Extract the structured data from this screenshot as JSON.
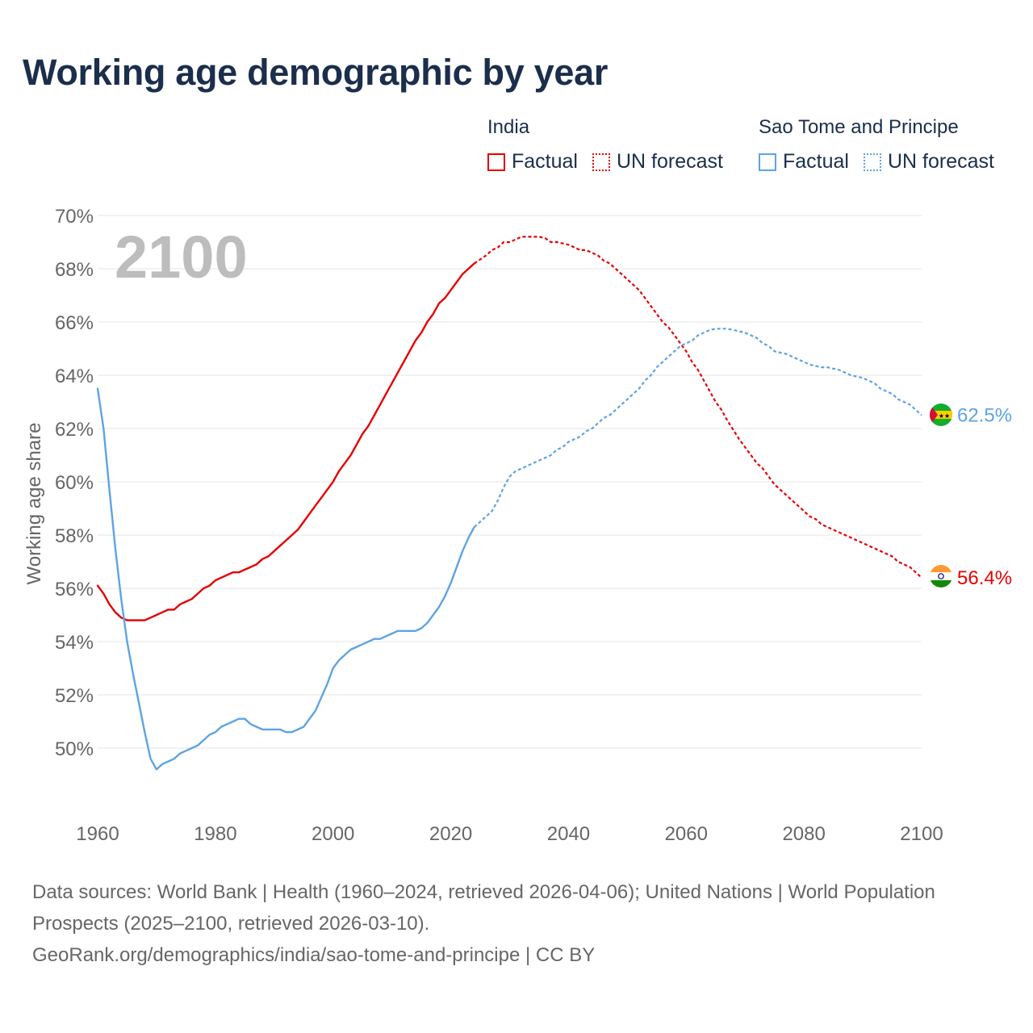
{
  "title": "Working age demographic by year",
  "legend": {
    "groups": [
      {
        "name": "India",
        "color": "#e60000",
        "factual_label": "Factual",
        "forecast_label": "UN forecast"
      },
      {
        "name": "Sao Tome and Principe",
        "color": "#5ea3e3",
        "factual_label": "Factual",
        "forecast_label": "UN forecast"
      }
    ]
  },
  "footer": {
    "sources": "Data sources: World Bank | Health (1960–2024, retrieved 2026-04-06); United Nations | World Population Prospects (2025–2100, retrieved 2026-03-10).",
    "url": "GeoRank.org/demographics/india/sao-tome-and-principe | CC BY"
  },
  "chart_data": {
    "type": "line",
    "title": "Working age demographic by year",
    "xlabel": "",
    "ylabel": "Working age share",
    "xlim": [
      1960,
      2100
    ],
    "ylim": [
      48,
      70
    ],
    "y_ticks": [
      50,
      52,
      54,
      56,
      58,
      60,
      62,
      64,
      66,
      68,
      70
    ],
    "y_tick_labels": [
      "50%",
      "52%",
      "54%",
      "56%",
      "58%",
      "60%",
      "62%",
      "64%",
      "66%",
      "68%",
      "70%"
    ],
    "x_ticks": [
      1960,
      1980,
      2000,
      2020,
      2040,
      2060,
      2080,
      2100
    ],
    "x_tick_labels": [
      "1960",
      "1980",
      "2000",
      "2020",
      "2040",
      "2060",
      "2080",
      "2100"
    ],
    "year_watermark": "2100",
    "grid": true,
    "series": [
      {
        "name": "India",
        "color": "#e60000",
        "end_label": "56.4%",
        "factual": [
          [
            1960,
            56.1
          ],
          [
            1961,
            55.8
          ],
          [
            1962,
            55.4
          ],
          [
            1963,
            55.1
          ],
          [
            1964,
            54.9
          ],
          [
            1965,
            54.8
          ],
          [
            1966,
            54.8
          ],
          [
            1967,
            54.8
          ],
          [
            1968,
            54.8
          ],
          [
            1969,
            54.9
          ],
          [
            1970,
            55.0
          ],
          [
            1971,
            55.1
          ],
          [
            1972,
            55.2
          ],
          [
            1973,
            55.2
          ],
          [
            1974,
            55.4
          ],
          [
            1975,
            55.5
          ],
          [
            1976,
            55.6
          ],
          [
            1977,
            55.8
          ],
          [
            1978,
            56.0
          ],
          [
            1979,
            56.1
          ],
          [
            1980,
            56.3
          ],
          [
            1981,
            56.4
          ],
          [
            1982,
            56.5
          ],
          [
            1983,
            56.6
          ],
          [
            1984,
            56.6
          ],
          [
            1985,
            56.7
          ],
          [
            1986,
            56.8
          ],
          [
            1987,
            56.9
          ],
          [
            1988,
            57.1
          ],
          [
            1989,
            57.2
          ],
          [
            1990,
            57.4
          ],
          [
            1991,
            57.6
          ],
          [
            1992,
            57.8
          ],
          [
            1993,
            58.0
          ],
          [
            1994,
            58.2
          ],
          [
            1995,
            58.5
          ],
          [
            1996,
            58.8
          ],
          [
            1997,
            59.1
          ],
          [
            1998,
            59.4
          ],
          [
            1999,
            59.7
          ],
          [
            2000,
            60.0
          ],
          [
            2001,
            60.4
          ],
          [
            2002,
            60.7
          ],
          [
            2003,
            61.0
          ],
          [
            2004,
            61.4
          ],
          [
            2005,
            61.8
          ],
          [
            2006,
            62.1
          ],
          [
            2007,
            62.5
          ],
          [
            2008,
            62.9
          ],
          [
            2009,
            63.3
          ],
          [
            2010,
            63.7
          ],
          [
            2011,
            64.1
          ],
          [
            2012,
            64.5
          ],
          [
            2013,
            64.9
          ],
          [
            2014,
            65.3
          ],
          [
            2015,
            65.6
          ],
          [
            2016,
            66.0
          ],
          [
            2017,
            66.3
          ],
          [
            2018,
            66.7
          ],
          [
            2019,
            66.9
          ],
          [
            2020,
            67.2
          ],
          [
            2021,
            67.5
          ],
          [
            2022,
            67.8
          ],
          [
            2023,
            68.0
          ],
          [
            2024,
            68.2
          ]
        ],
        "forecast": [
          [
            2024,
            68.2
          ],
          [
            2025,
            68.35
          ],
          [
            2026,
            68.5
          ],
          [
            2027,
            68.7
          ],
          [
            2028,
            68.8
          ],
          [
            2029,
            69.0
          ],
          [
            2030,
            69.0
          ],
          [
            2031,
            69.1
          ],
          [
            2032,
            69.2
          ],
          [
            2033,
            69.2
          ],
          [
            2034,
            69.2
          ],
          [
            2035,
            69.2
          ],
          [
            2036,
            69.15
          ],
          [
            2037,
            69.0
          ],
          [
            2038,
            69.0
          ],
          [
            2039,
            68.95
          ],
          [
            2040,
            68.9
          ],
          [
            2041,
            68.8
          ],
          [
            2042,
            68.7
          ],
          [
            2043,
            68.7
          ],
          [
            2044,
            68.6
          ],
          [
            2045,
            68.5
          ],
          [
            2046,
            68.3
          ],
          [
            2047,
            68.2
          ],
          [
            2048,
            68.0
          ],
          [
            2049,
            67.8
          ],
          [
            2050,
            67.6
          ],
          [
            2051,
            67.4
          ],
          [
            2052,
            67.2
          ],
          [
            2053,
            66.9
          ],
          [
            2054,
            66.6
          ],
          [
            2055,
            66.3
          ],
          [
            2056,
            66.0
          ],
          [
            2057,
            65.8
          ],
          [
            2058,
            65.5
          ],
          [
            2059,
            65.2
          ],
          [
            2060,
            64.9
          ],
          [
            2061,
            64.5
          ],
          [
            2062,
            64.2
          ],
          [
            2063,
            63.8
          ],
          [
            2064,
            63.4
          ],
          [
            2065,
            63.0
          ],
          [
            2066,
            62.7
          ],
          [
            2067,
            62.3
          ],
          [
            2068,
            61.95
          ],
          [
            2069,
            61.6
          ],
          [
            2070,
            61.3
          ],
          [
            2071,
            61.0
          ],
          [
            2072,
            60.7
          ],
          [
            2073,
            60.5
          ],
          [
            2074,
            60.2
          ],
          [
            2075,
            59.9
          ],
          [
            2076,
            59.7
          ],
          [
            2077,
            59.5
          ],
          [
            2078,
            59.3
          ],
          [
            2079,
            59.1
          ],
          [
            2080,
            58.9
          ],
          [
            2081,
            58.7
          ],
          [
            2082,
            58.6
          ],
          [
            2083,
            58.4
          ],
          [
            2084,
            58.3
          ],
          [
            2085,
            58.2
          ],
          [
            2086,
            58.1
          ],
          [
            2087,
            58.0
          ],
          [
            2088,
            57.9
          ],
          [
            2089,
            57.8
          ],
          [
            2090,
            57.7
          ],
          [
            2091,
            57.6
          ],
          [
            2092,
            57.5
          ],
          [
            2093,
            57.4
          ],
          [
            2094,
            57.3
          ],
          [
            2095,
            57.2
          ],
          [
            2096,
            57.0
          ],
          [
            2097,
            56.9
          ],
          [
            2098,
            56.8
          ],
          [
            2099,
            56.6
          ],
          [
            2100,
            56.4
          ]
        ]
      },
      {
        "name": "Sao Tome and Principe",
        "color": "#5ea3e3",
        "end_label": "62.5%",
        "factual": [
          [
            1960,
            63.5
          ],
          [
            1961,
            62.0
          ],
          [
            1962,
            59.7
          ],
          [
            1963,
            57.5
          ],
          [
            1964,
            55.6
          ],
          [
            1965,
            54.0
          ],
          [
            1966,
            52.8
          ],
          [
            1967,
            51.7
          ],
          [
            1968,
            50.6
          ],
          [
            1969,
            49.6
          ],
          [
            1970,
            49.2
          ],
          [
            1971,
            49.4
          ],
          [
            1972,
            49.5
          ],
          [
            1973,
            49.6
          ],
          [
            1974,
            49.8
          ],
          [
            1975,
            49.9
          ],
          [
            1976,
            50.0
          ],
          [
            1977,
            50.1
          ],
          [
            1978,
            50.3
          ],
          [
            1979,
            50.5
          ],
          [
            1980,
            50.6
          ],
          [
            1981,
            50.8
          ],
          [
            1982,
            50.9
          ],
          [
            1983,
            51.0
          ],
          [
            1984,
            51.1
          ],
          [
            1985,
            51.1
          ],
          [
            1986,
            50.9
          ],
          [
            1987,
            50.8
          ],
          [
            1988,
            50.7
          ],
          [
            1989,
            50.7
          ],
          [
            1990,
            50.7
          ],
          [
            1991,
            50.7
          ],
          [
            1992,
            50.6
          ],
          [
            1993,
            50.6
          ],
          [
            1994,
            50.7
          ],
          [
            1995,
            50.8
          ],
          [
            1996,
            51.1
          ],
          [
            1997,
            51.4
          ],
          [
            1998,
            51.9
          ],
          [
            1999,
            52.4
          ],
          [
            2000,
            53.0
          ],
          [
            2001,
            53.3
          ],
          [
            2002,
            53.5
          ],
          [
            2003,
            53.7
          ],
          [
            2004,
            53.8
          ],
          [
            2005,
            53.9
          ],
          [
            2006,
            54.0
          ],
          [
            2007,
            54.1
          ],
          [
            2008,
            54.1
          ],
          [
            2009,
            54.2
          ],
          [
            2010,
            54.3
          ],
          [
            2011,
            54.4
          ],
          [
            2012,
            54.4
          ],
          [
            2013,
            54.4
          ],
          [
            2014,
            54.4
          ],
          [
            2015,
            54.5
          ],
          [
            2016,
            54.7
          ],
          [
            2017,
            55.0
          ],
          [
            2018,
            55.3
          ],
          [
            2019,
            55.7
          ],
          [
            2020,
            56.2
          ],
          [
            2021,
            56.8
          ],
          [
            2022,
            57.4
          ],
          [
            2023,
            57.9
          ],
          [
            2024,
            58.3
          ]
        ],
        "forecast": [
          [
            2024,
            58.3
          ],
          [
            2025,
            58.5
          ],
          [
            2026,
            58.7
          ],
          [
            2027,
            58.9
          ],
          [
            2028,
            59.3
          ],
          [
            2029,
            59.8
          ],
          [
            2030,
            60.2
          ],
          [
            2031,
            60.4
          ],
          [
            2032,
            60.5
          ],
          [
            2033,
            60.6
          ],
          [
            2034,
            60.7
          ],
          [
            2035,
            60.8
          ],
          [
            2036,
            60.9
          ],
          [
            2037,
            61.0
          ],
          [
            2038,
            61.2
          ],
          [
            2039,
            61.3
          ],
          [
            2040,
            61.5
          ],
          [
            2041,
            61.6
          ],
          [
            2042,
            61.7
          ],
          [
            2043,
            61.9
          ],
          [
            2044,
            62.0
          ],
          [
            2045,
            62.2
          ],
          [
            2046,
            62.4
          ],
          [
            2047,
            62.5
          ],
          [
            2048,
            62.7
          ],
          [
            2049,
            62.9
          ],
          [
            2050,
            63.1
          ],
          [
            2051,
            63.3
          ],
          [
            2052,
            63.5
          ],
          [
            2053,
            63.8
          ],
          [
            2054,
            64.0
          ],
          [
            2055,
            64.3
          ],
          [
            2056,
            64.5
          ],
          [
            2057,
            64.7
          ],
          [
            2058,
            64.9
          ],
          [
            2059,
            65.1
          ],
          [
            2060,
            65.2
          ],
          [
            2061,
            65.3
          ],
          [
            2062,
            65.5
          ],
          [
            2063,
            65.6
          ],
          [
            2064,
            65.7
          ],
          [
            2065,
            65.75
          ],
          [
            2066,
            65.75
          ],
          [
            2067,
            65.75
          ],
          [
            2068,
            65.7
          ],
          [
            2069,
            65.65
          ],
          [
            2070,
            65.6
          ],
          [
            2071,
            65.5
          ],
          [
            2072,
            65.4
          ],
          [
            2073,
            65.2
          ],
          [
            2074,
            65.1
          ],
          [
            2075,
            64.9
          ],
          [
            2076,
            64.85
          ],
          [
            2077,
            64.8
          ],
          [
            2078,
            64.7
          ],
          [
            2079,
            64.6
          ],
          [
            2080,
            64.5
          ],
          [
            2081,
            64.4
          ],
          [
            2082,
            64.35
          ],
          [
            2083,
            64.3
          ],
          [
            2084,
            64.3
          ],
          [
            2085,
            64.25
          ],
          [
            2086,
            64.2
          ],
          [
            2087,
            64.1
          ],
          [
            2088,
            64.0
          ],
          [
            2089,
            63.95
          ],
          [
            2090,
            63.9
          ],
          [
            2091,
            63.8
          ],
          [
            2092,
            63.7
          ],
          [
            2093,
            63.5
          ],
          [
            2094,
            63.4
          ],
          [
            2095,
            63.3
          ],
          [
            2096,
            63.1
          ],
          [
            2097,
            63.0
          ],
          [
            2098,
            62.9
          ],
          [
            2099,
            62.7
          ],
          [
            2100,
            62.5
          ]
        ]
      }
    ]
  }
}
